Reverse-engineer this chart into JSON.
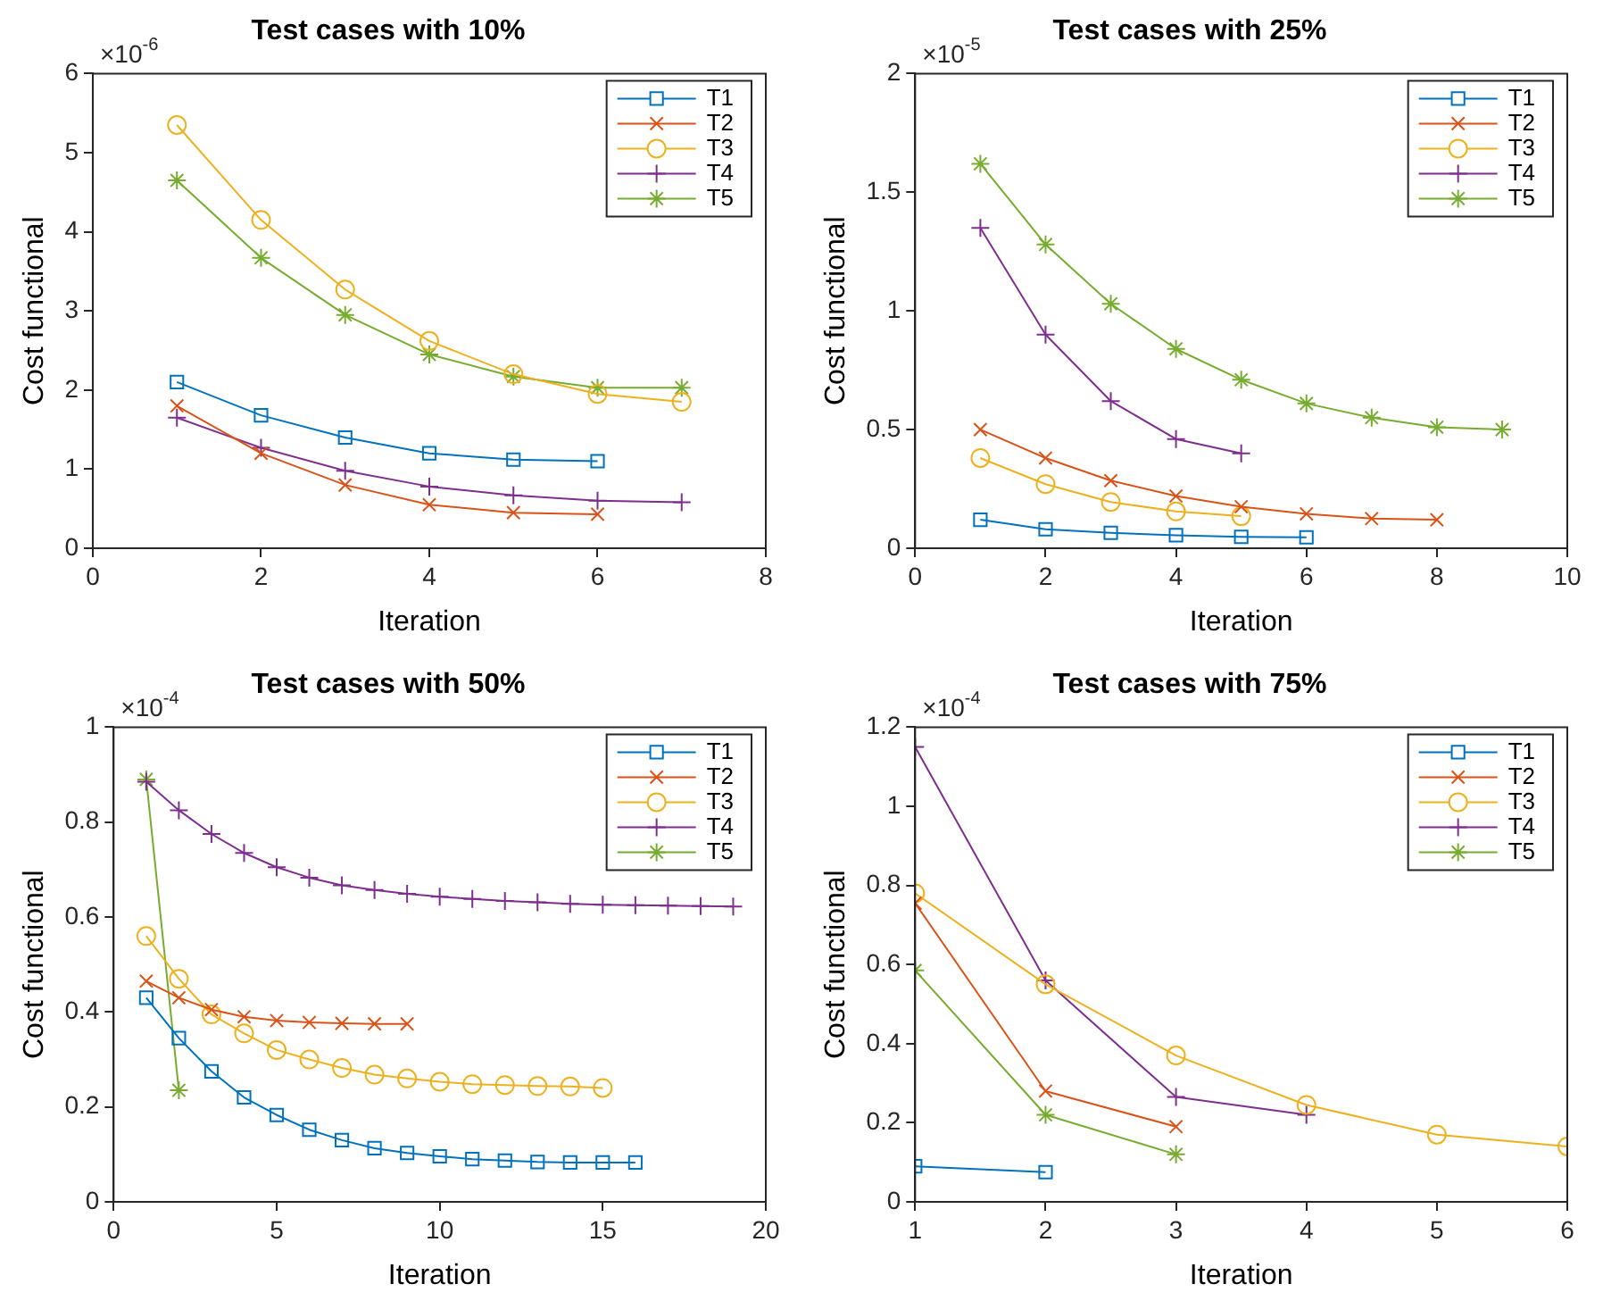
{
  "chart_data": [
    {
      "type": "line",
      "title": "Test cases with 10%",
      "xlabel": "Iteration",
      "ylabel": "Cost functional",
      "annotations": [
        "×10$^{-6}$"
      ],
      "xlim": [
        0,
        8
      ],
      "xticks": [
        0,
        2,
        4,
        6,
        8
      ],
      "ylim": [
        0,
        6
      ],
      "yticks": [
        0,
        1,
        2,
        3,
        4,
        5,
        6
      ],
      "grid": false,
      "legend": "top right",
      "series": [
        {
          "name": "T1",
          "color": "#0072bd",
          "marker": "square",
          "x": [
            1,
            2,
            3,
            4,
            5,
            6
          ],
          "values": [
            2.1,
            1.68,
            1.4,
            1.2,
            1.12,
            1.1
          ]
        },
        {
          "name": "T2",
          "color": "#d95319",
          "marker": "x",
          "x": [
            1,
            2,
            3,
            4,
            5,
            6
          ],
          "values": [
            1.8,
            1.2,
            0.8,
            0.55,
            0.45,
            0.43
          ]
        },
        {
          "name": "T3",
          "color": "#edb120",
          "marker": "circle",
          "x": [
            1,
            2,
            3,
            4,
            5,
            6,
            7
          ],
          "values": [
            5.35,
            4.15,
            3.27,
            2.62,
            2.2,
            1.95,
            1.85
          ]
        },
        {
          "name": "T4",
          "color": "#7e2f8e",
          "marker": "plus",
          "x": [
            1,
            2,
            3,
            4,
            5,
            6,
            7
          ],
          "values": [
            1.65,
            1.27,
            0.98,
            0.78,
            0.67,
            0.6,
            0.58
          ]
        },
        {
          "name": "T5",
          "color": "#77ac30",
          "marker": "cross",
          "x": [
            1,
            2,
            3,
            4,
            5,
            6,
            7
          ],
          "values": [
            4.65,
            3.67,
            2.95,
            2.45,
            2.17,
            2.03,
            2.03
          ]
        }
      ]
    },
    {
      "type": "line",
      "title": "Test cases with 25%",
      "xlabel": "Iteration",
      "ylabel": "Cost functional",
      "annotations": [
        "×10$^{-5}$"
      ],
      "xlim": [
        0,
        10
      ],
      "xticks": [
        0,
        2,
        4,
        6,
        8,
        10
      ],
      "ylim": [
        0,
        2
      ],
      "yticks": [
        0,
        0.5,
        1,
        1.5,
        2
      ],
      "grid": false,
      "legend": "top right",
      "series": [
        {
          "name": "T1",
          "color": "#0072bd",
          "marker": "square",
          "x": [
            1,
            2,
            3,
            4,
            5,
            6
          ],
          "values": [
            0.12,
            0.08,
            0.065,
            0.055,
            0.048,
            0.046
          ]
        },
        {
          "name": "T2",
          "color": "#d95319",
          "marker": "x",
          "x": [
            1,
            2,
            3,
            4,
            5,
            6,
            7,
            8
          ],
          "values": [
            0.5,
            0.38,
            0.285,
            0.22,
            0.175,
            0.145,
            0.125,
            0.12
          ]
        },
        {
          "name": "T3",
          "color": "#edb120",
          "marker": "circle",
          "x": [
            1,
            2,
            3,
            4,
            5
          ],
          "values": [
            0.38,
            0.27,
            0.195,
            0.155,
            0.135
          ]
        },
        {
          "name": "T4",
          "color": "#7e2f8e",
          "marker": "plus",
          "x": [
            1,
            2,
            3,
            4,
            5
          ],
          "values": [
            1.35,
            0.9,
            0.62,
            0.46,
            0.4
          ]
        },
        {
          "name": "T5",
          "color": "#77ac30",
          "marker": "cross",
          "x": [
            1,
            2,
            3,
            4,
            5,
            6,
            7,
            8,
            9
          ],
          "values": [
            1.62,
            1.28,
            1.03,
            0.84,
            0.71,
            0.61,
            0.55,
            0.51,
            0.5
          ]
        }
      ]
    },
    {
      "type": "line",
      "title": "Test cases with 50%",
      "xlabel": "Iteration",
      "ylabel": "Cost functional",
      "annotations": [
        "×10$^{-4}$"
      ],
      "xlim": [
        0,
        20
      ],
      "xticks": [
        0,
        5,
        10,
        15,
        20
      ],
      "ylim": [
        0,
        1
      ],
      "yticks": [
        0,
        0.2,
        0.4,
        0.6,
        0.8,
        1
      ],
      "grid": false,
      "legend": "top right",
      "series": [
        {
          "name": "T1",
          "color": "#0072bd",
          "marker": "square",
          "x": [
            1,
            2,
            3,
            4,
            5,
            6,
            7,
            8,
            9,
            10,
            11,
            12,
            13,
            14,
            15,
            16
          ],
          "values": [
            0.43,
            0.345,
            0.275,
            0.22,
            0.183,
            0.152,
            0.13,
            0.113,
            0.103,
            0.096,
            0.09,
            0.087,
            0.084,
            0.083,
            0.083,
            0.083
          ]
        },
        {
          "name": "T2",
          "color": "#d95319",
          "marker": "x",
          "x": [
            1,
            2,
            3,
            4,
            5,
            6,
            7,
            8,
            9
          ],
          "values": [
            0.465,
            0.43,
            0.405,
            0.39,
            0.382,
            0.378,
            0.376,
            0.375,
            0.375
          ]
        },
        {
          "name": "T3",
          "color": "#edb120",
          "marker": "circle",
          "x": [
            1,
            2,
            3,
            4,
            5,
            6,
            7,
            8,
            9,
            10,
            11,
            12,
            13,
            14,
            15
          ],
          "values": [
            0.56,
            0.47,
            0.395,
            0.355,
            0.32,
            0.3,
            0.282,
            0.268,
            0.26,
            0.253,
            0.248,
            0.246,
            0.244,
            0.243,
            0.24
          ]
        },
        {
          "name": "T4",
          "color": "#7e2f8e",
          "marker": "plus",
          "x": [
            1,
            2,
            3,
            4,
            5,
            6,
            7,
            8,
            9,
            10,
            11,
            12,
            13,
            14,
            15,
            16,
            17,
            18,
            19
          ],
          "values": [
            0.885,
            0.825,
            0.775,
            0.735,
            0.705,
            0.683,
            0.667,
            0.657,
            0.649,
            0.643,
            0.638,
            0.634,
            0.631,
            0.628,
            0.626,
            0.625,
            0.624,
            0.623,
            0.622
          ]
        },
        {
          "name": "T5",
          "color": "#77ac30",
          "marker": "cross",
          "x": [
            1,
            2
          ],
          "values": [
            0.89,
            0.235
          ]
        }
      ]
    },
    {
      "type": "line",
      "title": "Test cases with 75%",
      "xlabel": "Iteration",
      "ylabel": "Cost functional",
      "annotations": [
        "×10$^{-4}$"
      ],
      "xlim": [
        1,
        6
      ],
      "xticks": [
        1,
        2,
        3,
        4,
        5,
        6
      ],
      "ylim": [
        0,
        1.2
      ],
      "yticks": [
        0,
        0.2,
        0.4,
        0.6,
        0.8,
        1,
        1.2
      ],
      "grid": false,
      "legend": "top right",
      "series": [
        {
          "name": "T1",
          "color": "#0072bd",
          "marker": "square",
          "x": [
            1,
            2
          ],
          "values": [
            0.09,
            0.075
          ]
        },
        {
          "name": "T2",
          "color": "#d95319",
          "marker": "x",
          "x": [
            1,
            2,
            3
          ],
          "values": [
            0.755,
            0.28,
            0.19
          ]
        },
        {
          "name": "T3",
          "color": "#edb120",
          "marker": "circle",
          "x": [
            1,
            2,
            3,
            4,
            5,
            6
          ],
          "values": [
            0.78,
            0.55,
            0.37,
            0.245,
            0.17,
            0.14
          ]
        },
        {
          "name": "T4",
          "color": "#7e2f8e",
          "marker": "plus",
          "x": [
            1,
            2,
            3,
            4
          ],
          "values": [
            1.15,
            0.56,
            0.265,
            0.22
          ]
        },
        {
          "name": "T5",
          "color": "#77ac30",
          "marker": "cross",
          "x": [
            1,
            2,
            3
          ],
          "values": [
            0.585,
            0.22,
            0.12
          ]
        }
      ]
    }
  ]
}
